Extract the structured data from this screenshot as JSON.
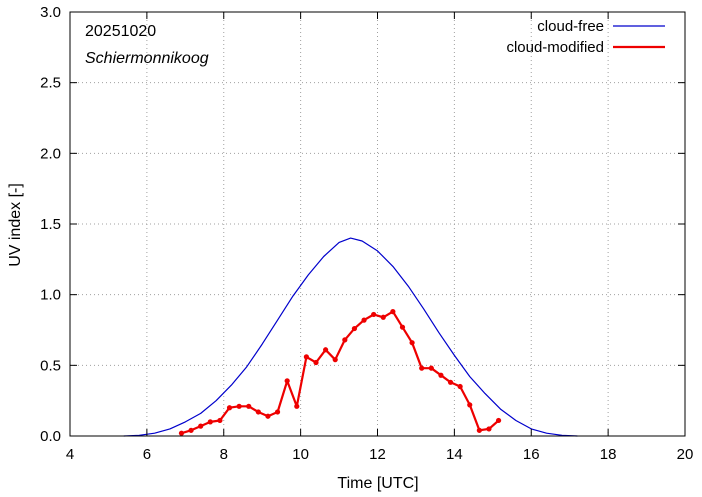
{
  "chart_data": {
    "type": "line",
    "xlabel": "Time  [UTC]",
    "ylabel": "UV index  [-]",
    "xlim": [
      4,
      20
    ],
    "ylim": [
      0.0,
      3.0
    ],
    "xticks": [
      4,
      6,
      8,
      10,
      12,
      14,
      16,
      18,
      20
    ],
    "yticks": [
      "0.0",
      "0.5",
      "1.0",
      "1.5",
      "2.0",
      "2.5",
      "3.0"
    ],
    "grid": true,
    "legend_position": "top-right",
    "annotations": {
      "date": "20251020",
      "location": "Schiermonnikoog"
    },
    "series": [
      {
        "name": "cloud-free",
        "color": "#0000cc",
        "markers": false,
        "x": [
          5.4,
          5.8,
          6.2,
          6.6,
          7.0,
          7.4,
          7.8,
          8.2,
          8.6,
          9.0,
          9.4,
          9.8,
          10.2,
          10.6,
          11.0,
          11.3,
          11.6,
          12.0,
          12.4,
          12.8,
          13.2,
          13.6,
          14.0,
          14.4,
          14.8,
          15.2,
          15.6,
          16.0,
          16.4,
          16.8,
          17.2
        ],
        "y": [
          0.0,
          0.005,
          0.02,
          0.05,
          0.1,
          0.16,
          0.25,
          0.36,
          0.49,
          0.65,
          0.82,
          0.99,
          1.14,
          1.27,
          1.37,
          1.4,
          1.38,
          1.31,
          1.2,
          1.06,
          0.9,
          0.73,
          0.57,
          0.42,
          0.3,
          0.19,
          0.11,
          0.05,
          0.02,
          0.005,
          0.0
        ]
      },
      {
        "name": "cloud-modified",
        "color": "#ee0000",
        "markers": true,
        "x": [
          6.9,
          7.15,
          7.4,
          7.65,
          7.9,
          8.15,
          8.4,
          8.65,
          8.9,
          9.15,
          9.4,
          9.65,
          9.9,
          10.15,
          10.4,
          10.65,
          10.9,
          11.15,
          11.4,
          11.65,
          11.9,
          12.15,
          12.4,
          12.65,
          12.9,
          13.15,
          13.4,
          13.65,
          13.9,
          14.15,
          14.4,
          14.65,
          14.9,
          15.15
        ],
        "y": [
          0.02,
          0.04,
          0.07,
          0.1,
          0.11,
          0.2,
          0.21,
          0.21,
          0.17,
          0.14,
          0.17,
          0.39,
          0.21,
          0.56,
          0.52,
          0.61,
          0.54,
          0.68,
          0.76,
          0.82,
          0.86,
          0.84,
          0.88,
          0.77,
          0.66,
          0.48,
          0.48,
          0.43,
          0.38,
          0.35,
          0.22,
          0.04,
          0.05,
          0.11
        ]
      }
    ]
  }
}
